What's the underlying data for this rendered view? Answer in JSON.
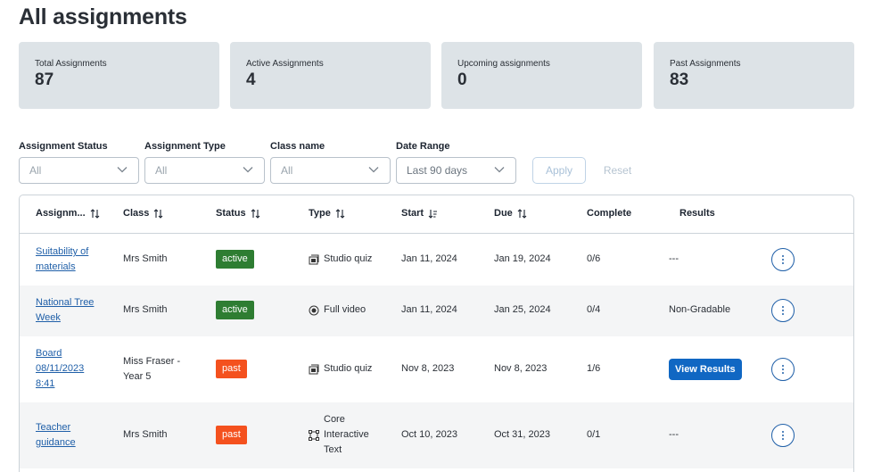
{
  "page_title": "All assignments",
  "stats": [
    {
      "label": "Total Assignments",
      "value": "87"
    },
    {
      "label": "Active Assignments",
      "value": "4"
    },
    {
      "label": "Upcoming assignments",
      "value": "0"
    },
    {
      "label": "Past Assignments",
      "value": "83"
    }
  ],
  "filters": {
    "assignment_status": {
      "label": "Assignment Status",
      "value": "All"
    },
    "assignment_type": {
      "label": "Assignment Type",
      "value": "All"
    },
    "class_name": {
      "label": "Class name",
      "value": "All"
    },
    "date_range": {
      "label": "Date Range",
      "value": "Last 90 days"
    },
    "apply_label": "Apply",
    "reset_label": "Reset"
  },
  "table": {
    "headers": {
      "assignment": "Assignm...",
      "class": "Class",
      "status": "Status",
      "type": "Type",
      "start": "Start",
      "due": "Due",
      "complete": "Complete",
      "results": "Results"
    },
    "rows": [
      {
        "name_lines": [
          "Suitability of",
          "materials"
        ],
        "class_lines": [
          "Mrs Smith"
        ],
        "status": "active",
        "type_lines": [
          "Studio quiz"
        ],
        "type_icon": "quiz-icon",
        "start": "Jan 11, 2024",
        "due": "Jan 19, 2024",
        "complete": "0/6",
        "results": "---"
      },
      {
        "name_lines": [
          "National Tree",
          "Week"
        ],
        "class_lines": [
          "Mrs Smith"
        ],
        "status": "active",
        "type_lines": [
          "Full video"
        ],
        "type_icon": "video-icon",
        "start": "Jan 11, 2024",
        "due": "Jan 25, 2024",
        "complete": "0/4",
        "results": "Non-Gradable"
      },
      {
        "name_lines": [
          "Board",
          "08/11/2023",
          "8:41"
        ],
        "class_lines": [
          "Miss Fraser -",
          "Year 5"
        ],
        "status": "past",
        "type_lines": [
          "Studio quiz"
        ],
        "type_icon": "quiz-icon",
        "start": "Nov 8, 2023",
        "due": "Nov 8, 2023",
        "complete": "1/6",
        "results_button": "View Results"
      },
      {
        "name_lines": [
          "Teacher",
          "guidance"
        ],
        "class_lines": [
          "Mrs Smith"
        ],
        "status": "past",
        "type_lines": [
          "Core",
          "Interactive",
          "Text"
        ],
        "type_icon": "interactive-text-icon",
        "start": "Oct 10, 2023",
        "due": "Oct 31, 2023",
        "complete": "0/1",
        "results": "---"
      }
    ]
  },
  "colors": {
    "active": "#2e7d32",
    "past": "#f4511e",
    "primary": "#1067c3",
    "card_bg": "#dde3e7"
  }
}
